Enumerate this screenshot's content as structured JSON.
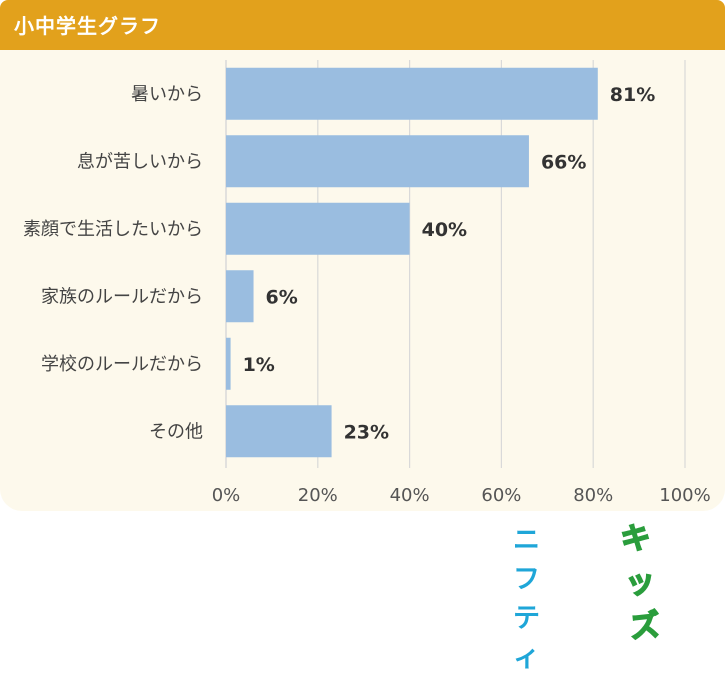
{
  "header": {
    "title": "小中学生グラフ"
  },
  "chart_data": {
    "type": "bar",
    "orientation": "horizontal",
    "categories": [
      "暑いから",
      "息が苦しいから",
      "素顔で生活したいから",
      "家族のルールだから",
      "学校のルールだから",
      "その他"
    ],
    "values": [
      81,
      66,
      40,
      6,
      1,
      23
    ],
    "value_labels": [
      "81%",
      "66%",
      "40%",
      "6%",
      "1%",
      "23%"
    ],
    "xlim": [
      0,
      100
    ],
    "xticks": [
      0,
      20,
      40,
      60,
      80,
      100
    ],
    "xtick_labels": [
      "0%",
      "20%",
      "40%",
      "60%",
      "80%",
      "100%"
    ],
    "grid": true,
    "bar_color": "#9abde0",
    "grid_color": "#d9d9d9"
  },
  "logo": {
    "nifty": "ニフティ",
    "kids": "キッズ"
  },
  "colors": {
    "header": "#e2a11c",
    "panel": "#fdf9ec"
  }
}
